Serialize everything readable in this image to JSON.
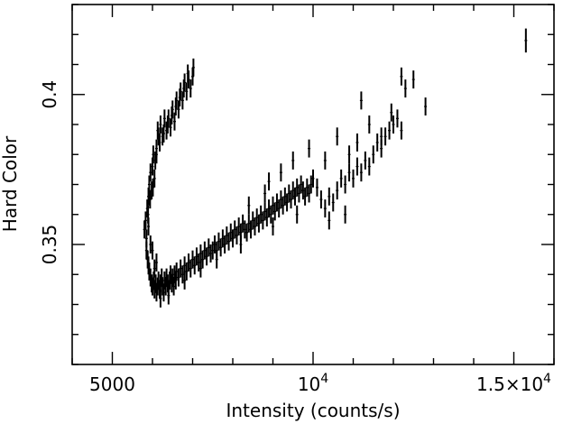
{
  "chart_data": {
    "type": "scatter",
    "title": "",
    "xlabel": "Intensity (counts/s)",
    "ylabel": "Hard Color",
    "xlim": [
      4000,
      16000
    ],
    "ylim": [
      0.31,
      0.43
    ],
    "x_ticks": [
      {
        "value": 5000,
        "label": "5000"
      },
      {
        "value": 10000,
        "label": "10",
        "sup": "4"
      },
      {
        "value": 15000,
        "label": "1.5×10",
        "sup": "4"
      }
    ],
    "y_ticks": [
      {
        "value": 0.35,
        "label": "0.35"
      },
      {
        "value": 0.4,
        "label": "0.4"
      }
    ],
    "grid": false,
    "marker_color": "#000000",
    "points": [
      [
        5800,
        0.355,
        0.003
      ],
      [
        5830,
        0.358,
        0.003
      ],
      [
        5850,
        0.352,
        0.003
      ],
      [
        5870,
        0.362,
        0.003
      ],
      [
        5900,
        0.366,
        0.003
      ],
      [
        5920,
        0.37,
        0.003
      ],
      [
        5950,
        0.374,
        0.003
      ],
      [
        5980,
        0.368,
        0.003
      ],
      [
        6000,
        0.376,
        0.003
      ],
      [
        6020,
        0.38,
        0.003
      ],
      [
        6050,
        0.372,
        0.003
      ],
      [
        6070,
        0.378,
        0.003
      ],
      [
        5890,
        0.36,
        0.003
      ],
      [
        5940,
        0.365,
        0.003
      ],
      [
        6010,
        0.369,
        0.003
      ],
      [
        6100,
        0.382,
        0.003
      ],
      [
        6150,
        0.386,
        0.003
      ],
      [
        6130,
        0.388,
        0.003
      ],
      [
        6200,
        0.39,
        0.003
      ],
      [
        6250,
        0.386,
        0.003
      ],
      [
        6300,
        0.392,
        0.003
      ],
      [
        6350,
        0.388,
        0.003
      ],
      [
        6400,
        0.392,
        0.003
      ],
      [
        6450,
        0.389,
        0.003
      ],
      [
        6500,
        0.395,
        0.003
      ],
      [
        6550,
        0.391,
        0.003
      ],
      [
        6600,
        0.398,
        0.003
      ],
      [
        6650,
        0.395,
        0.003
      ],
      [
        6700,
        0.401,
        0.003
      ],
      [
        6750,
        0.398,
        0.003
      ],
      [
        6800,
        0.404,
        0.003
      ],
      [
        6850,
        0.401,
        0.003
      ],
      [
        6900,
        0.405,
        0.003
      ],
      [
        6950,
        0.402,
        0.003
      ],
      [
        7000,
        0.406,
        0.003
      ],
      [
        6100,
        0.38,
        0.003
      ],
      [
        6180,
        0.384,
        0.003
      ],
      [
        6280,
        0.387,
        0.003
      ],
      [
        6380,
        0.39,
        0.003
      ],
      [
        6480,
        0.393,
        0.003
      ],
      [
        6580,
        0.396,
        0.003
      ],
      [
        6680,
        0.399,
        0.003
      ],
      [
        6780,
        0.402,
        0.003
      ],
      [
        6880,
        0.407,
        0.003
      ],
      [
        7020,
        0.409,
        0.003
      ],
      [
        5850,
        0.348,
        0.003
      ],
      [
        5880,
        0.345,
        0.003
      ],
      [
        5900,
        0.343,
        0.003
      ],
      [
        5920,
        0.341,
        0.003
      ],
      [
        5950,
        0.339,
        0.003
      ],
      [
        5980,
        0.337,
        0.003
      ],
      [
        6000,
        0.336,
        0.003
      ],
      [
        6030,
        0.338,
        0.003
      ],
      [
        6050,
        0.335,
        0.003
      ],
      [
        6080,
        0.337,
        0.003
      ],
      [
        6100,
        0.334,
        0.003
      ],
      [
        6130,
        0.336,
        0.003
      ],
      [
        6150,
        0.338,
        0.003
      ],
      [
        6180,
        0.335,
        0.003
      ],
      [
        6200,
        0.337,
        0.003
      ],
      [
        6230,
        0.339,
        0.003
      ],
      [
        6250,
        0.336,
        0.003
      ],
      [
        6280,
        0.334,
        0.003
      ],
      [
        6300,
        0.338,
        0.003
      ],
      [
        6330,
        0.336,
        0.003
      ],
      [
        6350,
        0.339,
        0.003
      ],
      [
        6380,
        0.337,
        0.003
      ],
      [
        6400,
        0.335,
        0.003
      ],
      [
        6430,
        0.338,
        0.003
      ],
      [
        6450,
        0.34,
        0.003
      ],
      [
        6480,
        0.337,
        0.003
      ],
      [
        6500,
        0.339,
        0.003
      ],
      [
        6530,
        0.336,
        0.003
      ],
      [
        6550,
        0.34,
        0.003
      ],
      [
        6580,
        0.338,
        0.003
      ],
      [
        6600,
        0.341,
        0.003
      ],
      [
        6650,
        0.339,
        0.003
      ],
      [
        6700,
        0.342,
        0.003
      ],
      [
        6750,
        0.34,
        0.003
      ],
      [
        6800,
        0.343,
        0.003
      ],
      [
        6850,
        0.341,
        0.003
      ],
      [
        6900,
        0.344,
        0.003
      ],
      [
        6950,
        0.342,
        0.003
      ],
      [
        7000,
        0.345,
        0.003
      ],
      [
        7050,
        0.343,
        0.003
      ],
      [
        7100,
        0.346,
        0.003
      ],
      [
        7150,
        0.344,
        0.003
      ],
      [
        7200,
        0.347,
        0.003
      ],
      [
        7250,
        0.345,
        0.003
      ],
      [
        7300,
        0.348,
        0.003
      ],
      [
        7350,
        0.346,
        0.003
      ],
      [
        7400,
        0.349,
        0.003
      ],
      [
        7450,
        0.347,
        0.003
      ],
      [
        7500,
        0.348,
        0.003
      ],
      [
        7550,
        0.35,
        0.003
      ],
      [
        7600,
        0.348,
        0.003
      ],
      [
        7650,
        0.351,
        0.003
      ],
      [
        7700,
        0.349,
        0.003
      ],
      [
        7750,
        0.352,
        0.003
      ],
      [
        7800,
        0.35,
        0.003
      ],
      [
        7850,
        0.353,
        0.003
      ],
      [
        7900,
        0.351,
        0.003
      ],
      [
        7950,
        0.354,
        0.003
      ],
      [
        8000,
        0.352,
        0.003
      ],
      [
        8050,
        0.355,
        0.003
      ],
      [
        8100,
        0.353,
        0.003
      ],
      [
        8150,
        0.356,
        0.003
      ],
      [
        8200,
        0.354,
        0.003
      ],
      [
        8250,
        0.357,
        0.003
      ],
      [
        8300,
        0.355,
        0.003
      ],
      [
        8350,
        0.354,
        0.003
      ],
      [
        8400,
        0.357,
        0.003
      ],
      [
        8450,
        0.355,
        0.003
      ],
      [
        8500,
        0.358,
        0.003
      ],
      [
        8550,
        0.356,
        0.003
      ],
      [
        8600,
        0.359,
        0.003
      ],
      [
        8650,
        0.357,
        0.003
      ],
      [
        8700,
        0.36,
        0.003
      ],
      [
        8750,
        0.358,
        0.003
      ],
      [
        8800,
        0.361,
        0.003
      ],
      [
        8850,
        0.359,
        0.003
      ],
      [
        8900,
        0.362,
        0.003
      ],
      [
        8950,
        0.36,
        0.003
      ],
      [
        9000,
        0.363,
        0.003
      ],
      [
        9050,
        0.361,
        0.003
      ],
      [
        9100,
        0.364,
        0.003
      ],
      [
        9150,
        0.362,
        0.003
      ],
      [
        9200,
        0.365,
        0.003
      ],
      [
        9250,
        0.363,
        0.003
      ],
      [
        9300,
        0.366,
        0.003
      ],
      [
        9350,
        0.364,
        0.003
      ],
      [
        9400,
        0.367,
        0.003
      ],
      [
        9450,
        0.365,
        0.003
      ],
      [
        9500,
        0.368,
        0.003
      ],
      [
        9550,
        0.366,
        0.003
      ],
      [
        9600,
        0.369,
        0.003
      ],
      [
        9650,
        0.367,
        0.003
      ],
      [
        9700,
        0.37,
        0.003
      ],
      [
        9750,
        0.368,
        0.003
      ],
      [
        9800,
        0.366,
        0.003
      ],
      [
        9850,
        0.369,
        0.003
      ],
      [
        9900,
        0.367,
        0.003
      ],
      [
        9950,
        0.37,
        0.003
      ],
      [
        10000,
        0.372,
        0.003
      ],
      [
        10100,
        0.369,
        0.003
      ],
      [
        10200,
        0.365,
        0.003
      ],
      [
        10300,
        0.362,
        0.003
      ],
      [
        10400,
        0.366,
        0.003
      ],
      [
        10500,
        0.364,
        0.003
      ],
      [
        10600,
        0.368,
        0.003
      ],
      [
        10700,
        0.372,
        0.003
      ],
      [
        10800,
        0.37,
        0.003
      ],
      [
        10900,
        0.374,
        0.003
      ],
      [
        11000,
        0.372,
        0.003
      ],
      [
        11100,
        0.376,
        0.003
      ],
      [
        11200,
        0.374,
        0.003
      ],
      [
        11300,
        0.378,
        0.003
      ],
      [
        11400,
        0.376,
        0.003
      ],
      [
        11500,
        0.38,
        0.003
      ],
      [
        11600,
        0.384,
        0.003
      ],
      [
        11700,
        0.382,
        0.003
      ],
      [
        11800,
        0.386,
        0.003
      ],
      [
        11900,
        0.388,
        0.003
      ],
      [
        12000,
        0.39,
        0.003
      ],
      [
        12100,
        0.392,
        0.003
      ],
      [
        12200,
        0.388,
        0.003
      ],
      [
        12300,
        0.402,
        0.003
      ],
      [
        12500,
        0.405,
        0.003
      ],
      [
        12800,
        0.396,
        0.003
      ],
      [
        9900,
        0.382,
        0.003
      ],
      [
        10300,
        0.378,
        0.003
      ],
      [
        10600,
        0.386,
        0.003
      ],
      [
        10900,
        0.38,
        0.003
      ],
      [
        11100,
        0.384,
        0.003
      ],
      [
        11400,
        0.39,
        0.003
      ],
      [
        11700,
        0.386,
        0.003
      ],
      [
        11950,
        0.394,
        0.003
      ],
      [
        12200,
        0.406,
        0.003
      ],
      [
        11200,
        0.398,
        0.003
      ],
      [
        9200,
        0.374,
        0.003
      ],
      [
        9500,
        0.378,
        0.003
      ],
      [
        8800,
        0.367,
        0.003
      ],
      [
        8400,
        0.363,
        0.003
      ],
      [
        8900,
        0.371,
        0.003
      ],
      [
        10800,
        0.36,
        0.003
      ],
      [
        10400,
        0.358,
        0.003
      ],
      [
        9600,
        0.36,
        0.003
      ],
      [
        9000,
        0.356,
        0.003
      ],
      [
        8200,
        0.35,
        0.003
      ],
      [
        7600,
        0.345,
        0.003
      ],
      [
        7200,
        0.342,
        0.003
      ],
      [
        6800,
        0.338,
        0.003
      ],
      [
        6400,
        0.333,
        0.003
      ],
      [
        6200,
        0.332,
        0.003
      ],
      [
        6050,
        0.342,
        0.003
      ],
      [
        6100,
        0.344,
        0.003
      ],
      [
        6000,
        0.348,
        0.003
      ],
      [
        5950,
        0.35,
        0.003
      ],
      [
        5900,
        0.356,
        0.003
      ],
      [
        15300,
        0.418,
        0.004
      ]
    ]
  }
}
